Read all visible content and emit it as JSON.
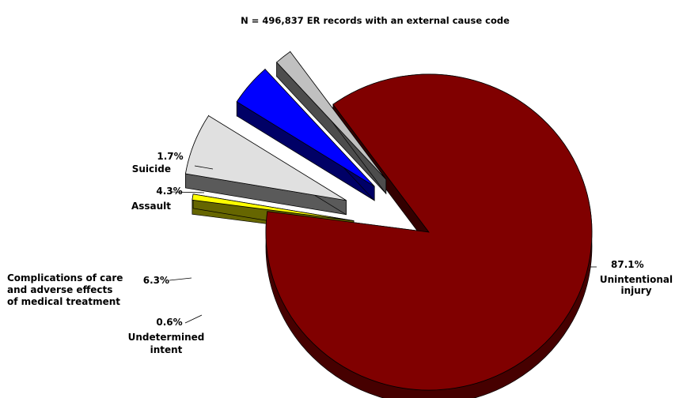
{
  "chart_data": {
    "type": "pie",
    "title": "N = 496,837 ER records with an external cause code",
    "slices": [
      {
        "label": [
          "Unintentional",
          "injury"
        ],
        "percent_label": "87.1%",
        "value": 87.1,
        "color": "#800000"
      },
      {
        "label": [
          "Undetermined",
          "intent"
        ],
        "percent_label": "0.6%",
        "value": 0.6,
        "color": "#ffff00"
      },
      {
        "label": [
          "Complications of care",
          "and adverse effects",
          "of medical treatment"
        ],
        "percent_label": "6.3%",
        "value": 6.3,
        "color": "#e0e0e0"
      },
      {
        "label": [
          "Assault"
        ],
        "percent_label": "4.3%",
        "value": 4.3,
        "color": "#0000ff"
      },
      {
        "label": [
          "Suicide"
        ],
        "percent_label": "1.7%",
        "value": 1.7,
        "color": "#c0c0c0"
      }
    ]
  }
}
